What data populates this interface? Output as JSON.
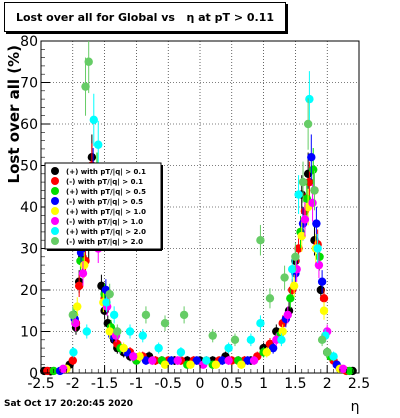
{
  "chart_data": {
    "type": "scatter",
    "title": "Lost over all for Global vs   η at pT > 0.11",
    "xlabel": "η",
    "ylabel": "Lost over all (%)",
    "xlim": [
      -2.5,
      2.5
    ],
    "ylim": [
      0,
      80
    ],
    "x_ticks": [
      -2.5,
      -2,
      -1.5,
      -1,
      -0.5,
      0,
      0.5,
      1,
      1.5,
      2,
      2.5
    ],
    "x_tick_labels": [
      "-2.5",
      "-2",
      "-1.5",
      "-1",
      "-0.5",
      "0",
      "0.5",
      "1",
      "1.5",
      "2",
      "2.5"
    ],
    "y_ticks": [
      0,
      10,
      20,
      30,
      40,
      50,
      60,
      70,
      80
    ],
    "y_tick_labels": [
      "0",
      "10",
      "20",
      "30",
      "40",
      "50",
      "60",
      "70",
      "80"
    ],
    "legend_position": "left-middle",
    "series": [
      {
        "name": "(+) with pT/|q| > 0.1",
        "color": "#000000",
        "points": [
          [
            -2.45,
            0.5
          ],
          [
            -2.35,
            0.4
          ],
          [
            -2.05,
            2
          ],
          [
            -1.95,
            11
          ],
          [
            -1.9,
            22
          ],
          [
            -1.85,
            28
          ],
          [
            -1.75,
            31
          ],
          [
            -1.7,
            52
          ],
          [
            -1.65,
            45
          ],
          [
            -1.55,
            21
          ],
          [
            -1.5,
            15
          ],
          [
            -1.45,
            12
          ],
          [
            -1.35,
            8
          ],
          [
            -1.3,
            6
          ],
          [
            -1.2,
            5
          ],
          [
            -1.1,
            4
          ],
          [
            -1.0,
            3
          ],
          [
            -0.8,
            4
          ],
          [
            -0.6,
            3
          ],
          [
            -0.4,
            3
          ],
          [
            -0.2,
            3
          ],
          [
            0.0,
            3
          ],
          [
            0.2,
            3
          ],
          [
            0.4,
            4
          ],
          [
            0.6,
            3
          ],
          [
            0.8,
            3
          ],
          [
            1.0,
            6
          ],
          [
            1.2,
            10
          ],
          [
            1.4,
            15
          ],
          [
            1.5,
            27
          ],
          [
            1.6,
            43
          ],
          [
            1.7,
            48
          ],
          [
            1.8,
            32
          ],
          [
            1.9,
            20
          ],
          [
            2.0,
            5
          ],
          [
            2.2,
            1
          ],
          [
            2.4,
            0.5
          ]
        ]
      },
      {
        "name": "(-) with pT/|q| > 0.1",
        "color": "#ff0000",
        "points": [
          [
            -2.4,
            0.5
          ],
          [
            -2.0,
            3
          ],
          [
            -1.95,
            12
          ],
          [
            -1.9,
            21
          ],
          [
            -1.8,
            27
          ],
          [
            -1.7,
            50
          ],
          [
            -1.6,
            40
          ],
          [
            -1.5,
            18
          ],
          [
            -1.4,
            10
          ],
          [
            -1.3,
            7
          ],
          [
            -1.1,
            5
          ],
          [
            -0.9,
            4
          ],
          [
            -0.7,
            3
          ],
          [
            -0.5,
            3
          ],
          [
            -0.3,
            3
          ],
          [
            -0.1,
            3
          ],
          [
            0.1,
            3
          ],
          [
            0.3,
            3
          ],
          [
            0.5,
            3
          ],
          [
            0.7,
            3
          ],
          [
            0.9,
            4
          ],
          [
            1.1,
            7
          ],
          [
            1.3,
            12
          ],
          [
            1.45,
            20
          ],
          [
            1.55,
            30
          ],
          [
            1.65,
            39
          ],
          [
            1.72,
            46
          ],
          [
            1.8,
            44
          ],
          [
            1.85,
            31
          ],
          [
            1.95,
            18
          ],
          [
            2.1,
            3
          ],
          [
            2.3,
            0.5
          ]
        ]
      },
      {
        "name": "(+) with pT/|q| > 0.5",
        "color": "#00dd00",
        "points": [
          [
            -2.3,
            0.5
          ],
          [
            -1.98,
            14
          ],
          [
            -1.88,
            27
          ],
          [
            -1.72,
            34
          ],
          [
            -1.62,
            48
          ],
          [
            -1.5,
            19
          ],
          [
            -1.4,
            11
          ],
          [
            -1.25,
            6
          ],
          [
            -1.0,
            3
          ],
          [
            -0.6,
            3
          ],
          [
            -0.2,
            2
          ],
          [
            0.2,
            2
          ],
          [
            0.6,
            3
          ],
          [
            1.0,
            5
          ],
          [
            1.25,
            9
          ],
          [
            1.42,
            18
          ],
          [
            1.58,
            34
          ],
          [
            1.68,
            42
          ],
          [
            1.78,
            49
          ],
          [
            1.88,
            28
          ],
          [
            2.05,
            4
          ],
          [
            2.35,
            0.5
          ]
        ]
      },
      {
        "name": "(-) with pT/|q| > 0.5",
        "color": "#0000ff",
        "points": [
          [
            -2.2,
            0.5
          ],
          [
            -1.97,
            13
          ],
          [
            -1.87,
            29
          ],
          [
            -1.68,
            49
          ],
          [
            -1.58,
            40
          ],
          [
            -1.48,
            20
          ],
          [
            -1.38,
            9
          ],
          [
            -1.15,
            5
          ],
          [
            -0.85,
            3
          ],
          [
            -0.45,
            3
          ],
          [
            -0.05,
            3
          ],
          [
            0.35,
            3
          ],
          [
            0.75,
            3
          ],
          [
            1.15,
            6
          ],
          [
            1.35,
            13
          ],
          [
            1.5,
            24
          ],
          [
            1.62,
            36
          ],
          [
            1.75,
            52
          ],
          [
            1.83,
            36
          ],
          [
            1.92,
            22
          ],
          [
            2.15,
            2
          ]
        ]
      },
      {
        "name": "(+) with pT/|q| > 1.0",
        "color": "#ffff00",
        "points": [
          [
            -2.1,
            1
          ],
          [
            -1.93,
            16
          ],
          [
            -1.82,
            26
          ],
          [
            -1.65,
            38
          ],
          [
            -1.52,
            17
          ],
          [
            -1.42,
            10
          ],
          [
            -1.2,
            6
          ],
          [
            -0.95,
            4
          ],
          [
            -0.55,
            2
          ],
          [
            -0.15,
            2
          ],
          [
            0.25,
            2
          ],
          [
            0.65,
            2
          ],
          [
            1.05,
            5
          ],
          [
            1.3,
            10
          ],
          [
            1.48,
            21
          ],
          [
            1.6,
            33
          ],
          [
            1.7,
            40
          ],
          [
            1.82,
            30
          ],
          [
            1.95,
            15
          ],
          [
            2.2,
            1
          ]
        ]
      },
      {
        "name": "(-) with pT/|q| > 1.0",
        "color": "#ff00ff",
        "points": [
          [
            -2.15,
            1
          ],
          [
            -1.96,
            12
          ],
          [
            -1.84,
            24
          ],
          [
            -1.6,
            30
          ],
          [
            -1.46,
            16
          ],
          [
            -1.32,
            9
          ],
          [
            -1.05,
            4
          ],
          [
            -0.75,
            3
          ],
          [
            -0.35,
            3
          ],
          [
            0.05,
            2
          ],
          [
            0.45,
            3
          ],
          [
            0.85,
            3
          ],
          [
            1.2,
            8
          ],
          [
            1.38,
            14
          ],
          [
            1.52,
            25
          ],
          [
            1.65,
            37
          ],
          [
            1.77,
            41
          ],
          [
            1.87,
            26
          ],
          [
            2.0,
            10
          ],
          [
            2.25,
            1
          ]
        ]
      },
      {
        "name": "(+) with pT/|q| > 2.0",
        "color": "#00ffff",
        "points": [
          [
            -1.99,
            5
          ],
          [
            -1.78,
            10
          ],
          [
            -1.67,
            61
          ],
          [
            -1.6,
            55
          ],
          [
            -1.47,
            17
          ],
          [
            -1.35,
            14
          ],
          [
            -1.1,
            10
          ],
          [
            -0.9,
            9
          ],
          [
            -0.65,
            6
          ],
          [
            -0.3,
            5
          ],
          [
            0.1,
            3
          ],
          [
            0.45,
            6
          ],
          [
            0.8,
            8
          ],
          [
            0.95,
            12
          ],
          [
            1.28,
            8
          ],
          [
            1.45,
            25
          ],
          [
            1.55,
            43
          ],
          [
            1.72,
            66
          ],
          [
            1.85,
            30
          ],
          [
            1.97,
            9
          ],
          [
            2.1,
            4
          ]
        ]
      },
      {
        "name": "(-) with pT/|q| > 2.0",
        "color": "#66cc66",
        "points": [
          [
            -2.0,
            14
          ],
          [
            -1.8,
            69
          ],
          [
            -1.75,
            75
          ],
          [
            -1.55,
            38
          ],
          [
            -1.42,
            19
          ],
          [
            -1.3,
            10
          ],
          [
            -0.85,
            14
          ],
          [
            -0.55,
            12
          ],
          [
            -0.25,
            14
          ],
          [
            0.2,
            9
          ],
          [
            0.55,
            8
          ],
          [
            0.95,
            32
          ],
          [
            1.1,
            18
          ],
          [
            1.33,
            23
          ],
          [
            1.5,
            28
          ],
          [
            1.62,
            46
          ],
          [
            1.7,
            60
          ],
          [
            1.8,
            44
          ],
          [
            1.92,
            8
          ],
          [
            2.0,
            5
          ]
        ]
      }
    ]
  },
  "footer": {
    "timestamp": "Sat Oct 17 20:20:45 2020"
  }
}
